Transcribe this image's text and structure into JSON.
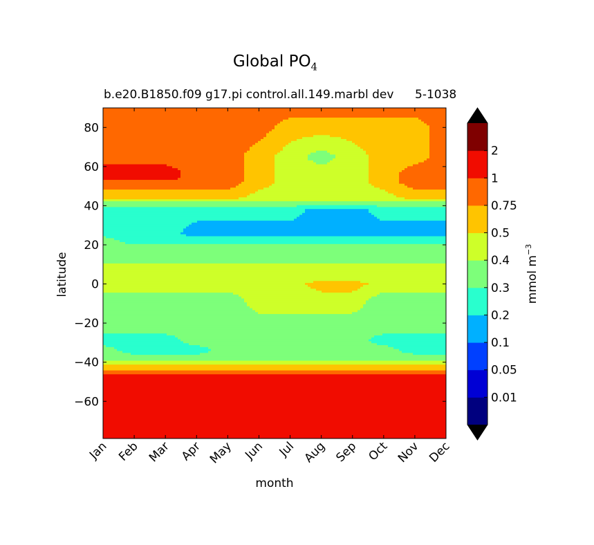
{
  "title": {
    "main": "Global PO",
    "subscript": "4"
  },
  "subtitle": "b.e20.B1850.f09 g17.pi control.all.149.marbl dev",
  "subtitle_right": "5-1038",
  "chart_data": {
    "type": "filled-contour",
    "xlabel": "month",
    "ylabel": "latitude",
    "x_categories": [
      "Jan",
      "Feb",
      "Mar",
      "Apr",
      "May",
      "Jun",
      "Jul",
      "Aug",
      "Sep",
      "Oct",
      "Nov",
      "Dec"
    ],
    "xlim": [
      0,
      11
    ],
    "ylim": [
      -79,
      90
    ],
    "y_ticks": [
      80,
      60,
      40,
      20,
      0,
      -20,
      -40,
      -60
    ],
    "colorbar": {
      "label_main": "mmol m",
      "label_exp": "−3",
      "extend": "both",
      "tick_labels": [
        "0.01",
        "0.05",
        "0.1",
        "0.2",
        "0.3",
        "0.4",
        "0.5",
        "0.75",
        "1",
        "2"
      ],
      "levels": [
        0,
        0.01,
        0.05,
        0.1,
        0.2,
        0.3,
        0.4,
        0.5,
        0.75,
        1,
        2,
        3
      ],
      "colors": [
        "#00007f",
        "#0000d5",
        "#0040ff",
        "#00b0ff",
        "#29ffce",
        "#7dff7a",
        "#ceff29",
        "#ffc400",
        "#ff6800",
        "#f10c00",
        "#7f0000"
      ],
      "under_color": "#000000",
      "over_color": "#000000"
    },
    "bands_description": "Approximate PO4 class (0=<0.01 ... 10=>2) as latitude ranges per month",
    "profile_lat": [
      -79,
      -50,
      -47,
      -45,
      -43,
      -40,
      -38,
      -34,
      -29,
      -22,
      -8,
      0,
      3,
      18,
      22,
      26,
      38,
      41,
      43,
      44,
      52,
      54,
      57,
      65,
      80,
      90
    ],
    "profiles": [
      [
        9,
        9,
        9,
        8,
        7,
        6,
        5,
        5,
        4,
        5,
        5,
        6,
        6,
        5,
        5,
        4,
        4,
        5,
        6,
        7,
        8,
        9,
        9,
        8,
        8,
        8
      ],
      [
        9,
        9,
        9,
        8,
        7,
        6,
        5,
        4,
        4,
        5,
        5,
        6,
        6,
        5,
        4,
        4,
        4,
        5,
        6,
        7,
        8,
        9,
        9,
        8,
        8,
        8
      ],
      [
        9,
        9,
        9,
        8,
        7,
        6,
        5,
        4,
        4,
        5,
        5,
        6,
        6,
        5,
        4,
        4,
        4,
        5,
        6,
        7,
        8,
        9,
        9,
        8,
        8,
        8
      ],
      [
        9,
        9,
        9,
        8,
        7,
        6,
        5,
        4,
        5,
        5,
        5,
        6,
        6,
        5,
        4,
        3,
        4,
        5,
        6,
        7,
        8,
        8,
        8,
        8,
        8,
        8
      ],
      [
        9,
        9,
        9,
        8,
        7,
        6,
        5,
        5,
        5,
        5,
        5,
        6,
        6,
        5,
        4,
        3,
        4,
        5,
        6,
        7,
        8,
        8,
        8,
        8,
        8,
        8
      ],
      [
        9,
        9,
        9,
        8,
        7,
        6,
        5,
        5,
        5,
        5,
        6,
        6,
        6,
        5,
        4,
        3,
        4,
        5,
        6,
        6,
        7,
        7,
        7,
        7,
        8,
        8
      ],
      [
        9,
        9,
        9,
        8,
        7,
        6,
        5,
        5,
        5,
        5,
        6,
        6,
        6,
        5,
        4,
        3,
        4,
        5,
        6,
        6,
        6,
        6,
        6,
        6,
        7,
        8
      ],
      [
        9,
        9,
        9,
        8,
        7,
        6,
        5,
        5,
        5,
        5,
        6,
        7,
        6,
        5,
        4,
        3,
        3,
        5,
        6,
        6,
        6,
        6,
        6,
        5,
        7,
        8
      ],
      [
        9,
        9,
        9,
        8,
        7,
        6,
        5,
        5,
        5,
        5,
        6,
        7,
        6,
        5,
        4,
        3,
        3,
        5,
        6,
        6,
        6,
        6,
        6,
        6,
        7,
        8
      ],
      [
        9,
        9,
        9,
        8,
        7,
        6,
        5,
        5,
        4,
        5,
        5,
        6,
        6,
        5,
        4,
        3,
        4,
        5,
        6,
        6,
        7,
        7,
        7,
        7,
        7,
        8
      ],
      [
        9,
        9,
        9,
        8,
        7,
        6,
        5,
        4,
        4,
        5,
        5,
        6,
        6,
        5,
        4,
        3,
        4,
        5,
        6,
        7,
        8,
        8,
        8,
        7,
        7,
        8
      ],
      [
        9,
        9,
        9,
        8,
        7,
        6,
        5,
        4,
        4,
        5,
        5,
        6,
        6,
        5,
        4,
        3,
        4,
        5,
        6,
        7,
        8,
        8,
        8,
        8,
        8,
        8
      ]
    ]
  }
}
